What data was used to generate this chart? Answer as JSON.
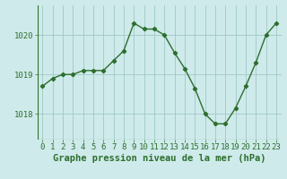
{
  "hours": [
    0,
    1,
    2,
    3,
    4,
    5,
    6,
    7,
    8,
    9,
    10,
    11,
    12,
    13,
    14,
    15,
    16,
    17,
    18,
    19,
    20,
    21,
    22,
    23
  ],
  "pressure": [
    1018.7,
    1018.9,
    1019.0,
    1019.0,
    1019.1,
    1019.1,
    1019.1,
    1019.35,
    1019.6,
    1020.3,
    1020.15,
    1020.15,
    1020.0,
    1019.55,
    1019.15,
    1018.65,
    1018.0,
    1017.75,
    1017.75,
    1018.15,
    1018.7,
    1019.3,
    1020.0,
    1020.3
  ],
  "line_color": "#2d6e2d",
  "marker": "D",
  "marker_size": 2.2,
  "bg_color": "#ceeaea",
  "grid_color": "#a0c8c8",
  "xlabel": "Graphe pression niveau de la mer (hPa)",
  "ylabel_ticks": [
    1018,
    1019,
    1020
  ],
  "ylim": [
    1017.35,
    1020.75
  ],
  "xlim": [
    -0.5,
    23.5
  ],
  "xtick_labels": [
    "0",
    "1",
    "2",
    "3",
    "4",
    "5",
    "6",
    "7",
    "8",
    "9",
    "10",
    "11",
    "12",
    "13",
    "14",
    "15",
    "16",
    "17",
    "18",
    "19",
    "20",
    "21",
    "22",
    "23"
  ],
  "tick_fontsize": 6.5,
  "label_fontsize": 7.5
}
